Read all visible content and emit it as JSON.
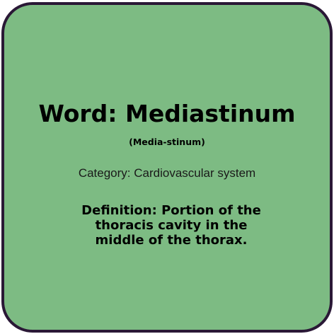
{
  "card": {
    "word": "Word: Mediastinum",
    "pronunciation": "(Media-stinum)",
    "category": "Category: Cardiovascular system",
    "definition": "Definition: Portion of the thoracis cavity in the middle of the thorax.",
    "background_color": "#7dbb83",
    "border_color": "#2a1836"
  }
}
